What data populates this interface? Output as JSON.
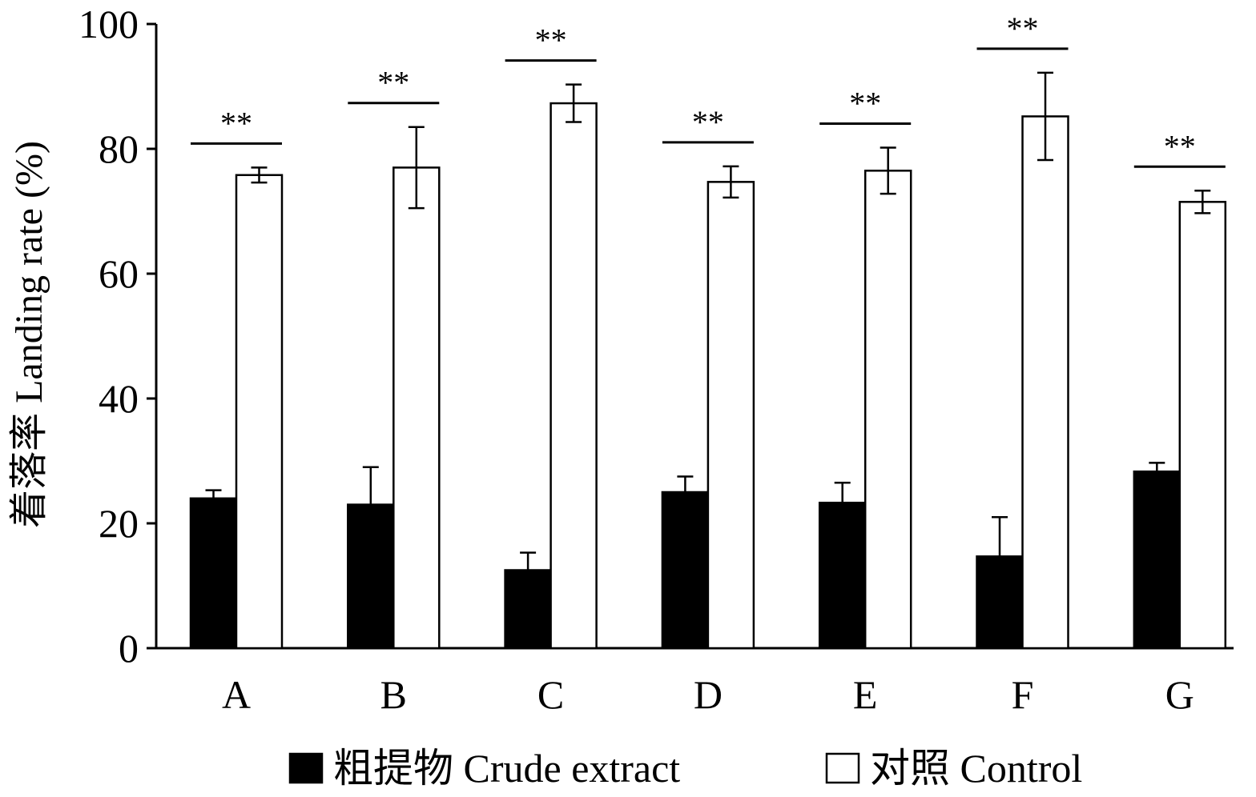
{
  "chart_data": {
    "type": "bar",
    "categories": [
      "A",
      "B",
      "C",
      "D",
      "E",
      "F",
      "G"
    ],
    "series": [
      {
        "name": "粗提物  Crude extract",
        "values": [
          24.0,
          23.0,
          12.5,
          25.0,
          23.3,
          14.7,
          28.3
        ],
        "errors": [
          1.3,
          6.0,
          2.8,
          2.5,
          3.2,
          6.3,
          1.4
        ],
        "fill": "#000000"
      },
      {
        "name": "对照  Control",
        "values": [
          75.8,
          77.0,
          87.3,
          74.7,
          76.5,
          85.2,
          71.5
        ],
        "errors": [
          1.2,
          6.5,
          3.0,
          2.5,
          3.7,
          7.0,
          1.8
        ],
        "fill": "#ffffff"
      }
    ],
    "significance": [
      "**",
      "**",
      "**",
      "**",
      "**",
      "**",
      "**"
    ],
    "ylabel": "着落率  Landing rate (%)",
    "xlabel": "",
    "ylim": [
      0,
      100
    ],
    "yticks": [
      0,
      20,
      40,
      60,
      80,
      100
    ],
    "grid": false,
    "legend_position": "bottom-center"
  }
}
